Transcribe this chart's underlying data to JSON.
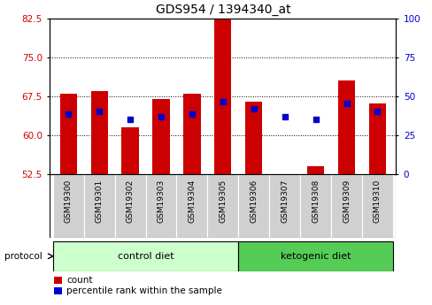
{
  "title": "GDS954 / 1394340_at",
  "samples": [
    "GSM19300",
    "GSM19301",
    "GSM19302",
    "GSM19303",
    "GSM19304",
    "GSM19305",
    "GSM19306",
    "GSM19307",
    "GSM19308",
    "GSM19309",
    "GSM19310"
  ],
  "bar_heights": [
    68.0,
    68.5,
    61.5,
    67.0,
    68.0,
    84.5,
    66.5,
    52.5,
    54.0,
    70.5,
    66.0
  ],
  "percentile_values": [
    64.0,
    64.5,
    63.0,
    63.5,
    64.0,
    66.5,
    65.0,
    63.5,
    63.0,
    66.0,
    64.5
  ],
  "ylim_left": [
    52.5,
    82.5
  ],
  "yticks_left": [
    52.5,
    60.0,
    67.5,
    75.0,
    82.5
  ],
  "yticks_right": [
    0,
    25,
    50,
    75,
    100
  ],
  "ylim_right": [
    0,
    100
  ],
  "bar_color": "#cc0000",
  "percentile_color": "#0000cc",
  "bar_width": 0.55,
  "group_labels": [
    "control diet",
    "ketogenic diet"
  ],
  "group_colors": [
    "#ccffcc",
    "#55cc55"
  ],
  "protocol_label": "protocol",
  "legend_items": [
    "count",
    "percentile rank within the sample"
  ],
  "bg_color": "#ffffff",
  "plot_bg_color": "#ffffff",
  "tick_label_color_left": "#cc0000",
  "tick_label_color_right": "#0000cc",
  "grid_color": "#000000",
  "label_bg_color": "#d0d0d0",
  "title_fontsize": 10,
  "tick_fontsize": 7.5,
  "sample_fontsize": 6.5,
  "group_fontsize": 8,
  "legend_fontsize": 7.5
}
